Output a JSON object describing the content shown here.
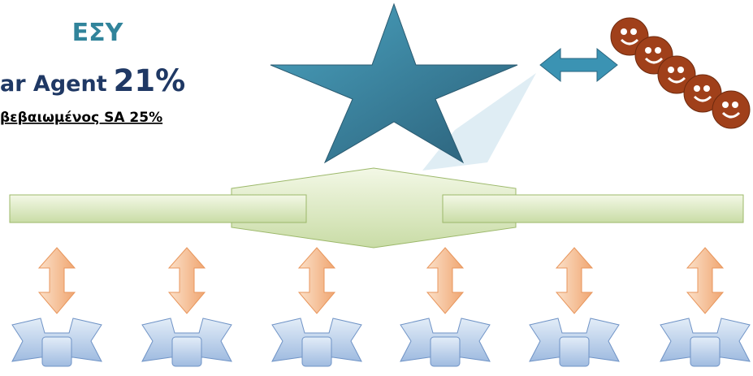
{
  "header": {
    "title": "ΕΣΥ",
    "agent_label": "ar Agent",
    "agent_percent": "21%",
    "subtitle": "βεβαιωμένος SA 25%"
  }
}
